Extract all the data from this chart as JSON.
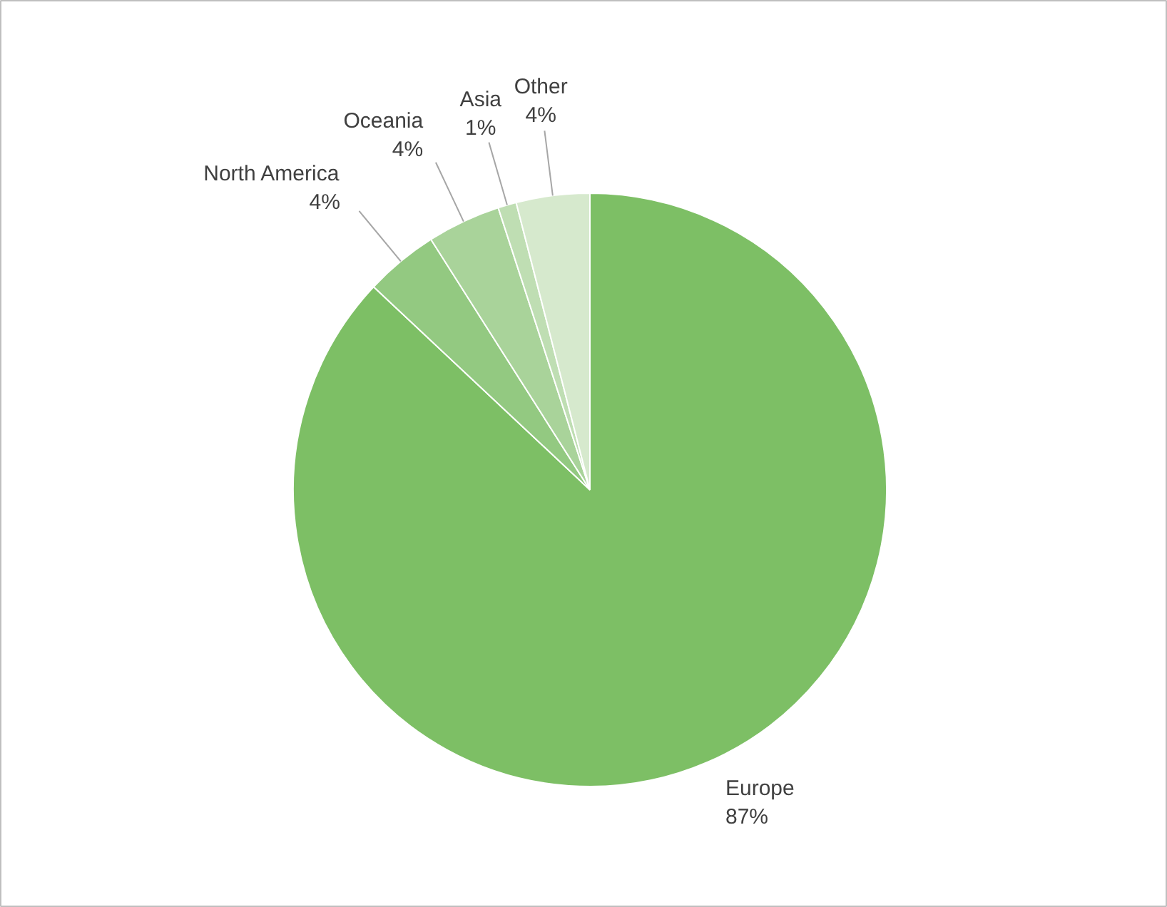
{
  "chart_data": {
    "type": "pie",
    "categories": [
      "Europe",
      "North America",
      "Oceania",
      "Asia",
      "Other"
    ],
    "values": [
      87,
      4,
      4,
      1,
      4
    ],
    "value_labels": [
      "87%",
      "4%",
      "4%",
      "1%",
      "4%"
    ],
    "colors": [
      "#7dbf65",
      "#93c981",
      "#a9d39a",
      "#bfdeb3",
      "#d6e9cd"
    ]
  }
}
